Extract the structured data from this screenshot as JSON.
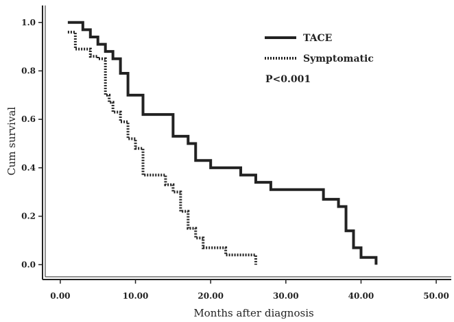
{
  "chart_data": {
    "type": "line",
    "step": true,
    "xlabel": "Months after diagnosis",
    "ylabel": "Cum survival",
    "xlim": [
      -2,
      52
    ],
    "ylim": [
      -0.05,
      1.07
    ],
    "xticks": [
      0,
      10,
      20,
      30,
      40,
      50
    ],
    "xtick_labels": [
      "0.00",
      "10.00",
      "20.00",
      "30.00",
      "40.00",
      "50.00"
    ],
    "yticks": [
      0,
      0.2,
      0.4,
      0.6,
      0.8,
      1.0
    ],
    "ytick_labels": [
      "0.0",
      "0.2",
      "0.4",
      "0.6",
      "0.8",
      "1.0"
    ],
    "grid": false,
    "legend_position": "top-right",
    "annotation": "P<0.001",
    "series": [
      {
        "name": "TACE",
        "style": "solid",
        "color": "#222222",
        "x": [
          1,
          3,
          4,
          5,
          6,
          7,
          8,
          9,
          11,
          15,
          17,
          18,
          20,
          24,
          26,
          28,
          35,
          37,
          38,
          39,
          40,
          42
        ],
        "y": [
          1.0,
          0.97,
          0.94,
          0.91,
          0.88,
          0.85,
          0.79,
          0.7,
          0.62,
          0.53,
          0.5,
          0.43,
          0.4,
          0.37,
          0.34,
          0.31,
          0.27,
          0.24,
          0.14,
          0.07,
          0.03,
          0.0
        ]
      },
      {
        "name": "Symptomatic",
        "style": "dotted",
        "color": "#222222",
        "x": [
          1,
          2,
          4,
          5,
          6,
          6.5,
          7,
          8,
          9,
          10,
          11,
          14,
          15,
          16,
          17,
          18,
          19,
          22,
          26
        ],
        "y": [
          0.96,
          0.89,
          0.86,
          0.85,
          0.7,
          0.67,
          0.63,
          0.59,
          0.52,
          0.48,
          0.37,
          0.33,
          0.3,
          0.22,
          0.15,
          0.11,
          0.07,
          0.04,
          0.0
        ]
      }
    ]
  }
}
